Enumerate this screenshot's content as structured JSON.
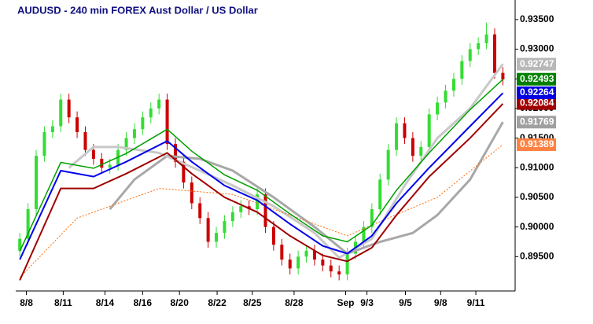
{
  "chart_data": {
    "type": "candlestick",
    "title": "AUDUSD - 240 min  FOREX  Aust Dollar / US Dollar",
    "up_color": "#33dd33",
    "down_color": "#cc0000",
    "open": [
      0.896,
      0.898,
      0.903,
      0.912,
      0.916,
      0.917,
      0.9215,
      0.9185,
      0.916,
      0.913,
      0.9115,
      0.91,
      0.9105,
      0.913,
      0.915,
      0.9165,
      0.9185,
      0.92,
      0.9215,
      0.914,
      0.911,
      0.9075,
      0.904,
      0.9015,
      0.8975,
      0.899,
      0.901,
      0.9025,
      0.9035,
      0.903,
      0.9055,
      0.9,
      0.897,
      0.8945,
      0.893,
      0.895,
      0.896,
      0.8945,
      0.8935,
      0.8925,
      0.892,
      0.8955,
      0.8975,
      0.9,
      0.903,
      0.908,
      0.913,
      0.9175,
      0.915,
      0.912,
      0.9135,
      0.919,
      0.921,
      0.923,
      0.925,
      0.928,
      0.93,
      0.931,
      0.9325,
      0.926
    ],
    "high": [
      0.899,
      0.904,
      0.913,
      0.917,
      0.918,
      0.9225,
      0.9225,
      0.9195,
      0.917,
      0.914,
      0.9125,
      0.9115,
      0.914,
      0.916,
      0.9175,
      0.9195,
      0.921,
      0.9225,
      0.9225,
      0.915,
      0.912,
      0.9085,
      0.905,
      0.9025,
      0.9,
      0.902,
      0.9035,
      0.9045,
      0.9045,
      0.9065,
      0.9065,
      0.901,
      0.898,
      0.8955,
      0.896,
      0.897,
      0.897,
      0.8955,
      0.8945,
      0.8935,
      0.8965,
      0.8985,
      0.901,
      0.904,
      0.909,
      0.914,
      0.9185,
      0.9185,
      0.916,
      0.9145,
      0.92,
      0.922,
      0.924,
      0.926,
      0.929,
      0.931,
      0.932,
      0.9345,
      0.9335,
      0.927
    ],
    "low": [
      0.895,
      0.897,
      0.902,
      0.911,
      0.915,
      0.916,
      0.9175,
      0.915,
      0.912,
      0.9105,
      0.909,
      0.909,
      0.9095,
      0.912,
      0.914,
      0.9155,
      0.9175,
      0.919,
      0.913,
      0.91,
      0.9065,
      0.903,
      0.9005,
      0.8965,
      0.8965,
      0.898,
      0.9,
      0.9015,
      0.902,
      0.902,
      0.899,
      0.896,
      0.8935,
      0.892,
      0.892,
      0.894,
      0.8935,
      0.8925,
      0.8915,
      0.891,
      0.891,
      0.8945,
      0.8965,
      0.899,
      0.902,
      0.907,
      0.912,
      0.914,
      0.911,
      0.911,
      0.9125,
      0.918,
      0.92,
      0.922,
      0.924,
      0.927,
      0.929,
      0.93,
      0.925,
      0.9239
    ],
    "close": [
      0.898,
      0.903,
      0.912,
      0.916,
      0.917,
      0.9215,
      0.9185,
      0.916,
      0.913,
      0.9115,
      0.91,
      0.9105,
      0.913,
      0.915,
      0.9165,
      0.9185,
      0.92,
      0.9215,
      0.914,
      0.911,
      0.9075,
      0.904,
      0.9015,
      0.8975,
      0.899,
      0.901,
      0.9025,
      0.9035,
      0.903,
      0.9055,
      0.9,
      0.897,
      0.8945,
      0.893,
      0.895,
      0.896,
      0.8945,
      0.8935,
      0.8925,
      0.892,
      0.8955,
      0.8975,
      0.9,
      0.903,
      0.908,
      0.913,
      0.9175,
      0.915,
      0.912,
      0.9135,
      0.919,
      0.921,
      0.923,
      0.925,
      0.928,
      0.93,
      0.931,
      0.9325,
      0.926,
      0.9249
    ],
    "series": [
      {
        "color": "#a8a8a8",
        "width": 3,
        "x": [
          11,
          14,
          18,
          22,
          26,
          31,
          36,
          40,
          44,
          48,
          51,
          55,
          59
        ],
        "values": [
          0.903,
          0.908,
          0.912,
          0.9115,
          0.9095,
          0.905,
          0.9,
          0.8955,
          0.8975,
          0.899,
          0.902,
          0.908,
          0.9177
        ]
      },
      {
        "color": "#c8c8c8",
        "width": 3,
        "x": [
          6,
          9,
          12,
          17,
          22,
          26,
          31,
          36,
          39,
          43,
          47,
          51,
          55,
          59
        ],
        "values": [
          0.91,
          0.9135,
          0.9135,
          0.9125,
          0.9095,
          0.907,
          0.9035,
          0.899,
          0.8948,
          0.898,
          0.907,
          0.915,
          0.92,
          0.9275
        ]
      },
      {
        "color": "#ff6a00",
        "width": 1,
        "dashed": true,
        "x": [
          0,
          7,
          17,
          26,
          36,
          40,
          45,
          51,
          59
        ],
        "values": [
          0.8915,
          0.9015,
          0.9065,
          0.9055,
          0.9005,
          0.8985,
          0.9015,
          0.905,
          0.9139
        ]
      },
      {
        "color": "#a00000",
        "width": 2,
        "x": [
          0,
          5,
          9,
          13,
          18,
          21,
          25,
          29,
          33,
          37,
          40,
          43,
          46,
          50,
          55,
          59
        ],
        "values": [
          0.891,
          0.9065,
          0.9065,
          0.909,
          0.9125,
          0.909,
          0.905,
          0.9025,
          0.8985,
          0.8952,
          0.8942,
          0.8965,
          0.902,
          0.9085,
          0.915,
          0.9208
        ]
      },
      {
        "color": "#0000ee",
        "width": 2,
        "x": [
          0,
          5,
          9,
          13,
          18,
          21,
          25,
          29,
          33,
          37,
          40,
          43,
          46,
          50,
          55,
          59
        ],
        "values": [
          0.8945,
          0.9095,
          0.9085,
          0.911,
          0.9145,
          0.911,
          0.907,
          0.9045,
          0.9005,
          0.8968,
          0.8955,
          0.8985,
          0.904,
          0.91,
          0.917,
          0.9226
        ]
      },
      {
        "color": "#00a000",
        "width": 1.5,
        "x": [
          0,
          5,
          9,
          13,
          18,
          21,
          25,
          29,
          33,
          37,
          40,
          43,
          46,
          50,
          55,
          59
        ],
        "values": [
          0.8959,
          0.9109,
          0.9099,
          0.9124,
          0.9165,
          0.9128,
          0.9088,
          0.9062,
          0.9022,
          0.8985,
          0.8975,
          0.9003,
          0.9062,
          0.9125,
          0.9198,
          0.9249
        ]
      }
    ],
    "xlim": [
      -0.5,
      60.5
    ],
    "xticks": [
      {
        "value": 0.8,
        "label": "8/8"
      },
      {
        "value": 5.3,
        "label": "8/11"
      },
      {
        "value": 10.4,
        "label": "8/14"
      },
      {
        "value": 15,
        "label": "8/16"
      },
      {
        "value": 19.5,
        "label": "8/20"
      },
      {
        "value": 24.1,
        "label": "8/22"
      },
      {
        "value": 28.4,
        "label": "8/25"
      },
      {
        "value": 33.5,
        "label": "8/28"
      },
      {
        "value": 39.8,
        "label": "Sep"
      },
      {
        "value": 42.4,
        "label": "9/3"
      },
      {
        "value": 47.1,
        "label": "9/5"
      },
      {
        "value": 51.4,
        "label": "9/8"
      },
      {
        "value": 55.7,
        "label": "9/11"
      }
    ],
    "ylim": [
      0.8892,
      0.9383
    ],
    "yticks": [
      {
        "value": 0.935,
        "label": "0.93500"
      },
      {
        "value": 0.93,
        "label": "0.93000"
      },
      {
        "value": 0.925,
        "label": "0.92500"
      },
      {
        "value": 0.92,
        "label": "0.92000"
      },
      {
        "value": 0.915,
        "label": "0.91500"
      },
      {
        "value": 0.91,
        "label": "0.91000"
      },
      {
        "value": 0.905,
        "label": "0.90500"
      },
      {
        "value": 0.9,
        "label": "0.90000"
      },
      {
        "value": 0.895,
        "label": "0.89500"
      }
    ],
    "annotations": [
      {
        "value": 0.91389,
        "label": "0.91389",
        "color": "#ff8040"
      },
      {
        "value": 0.91769,
        "label": "0.91769",
        "color": "#a0a0a0"
      },
      {
        "value": 0.92747,
        "label": "0.92747",
        "color": "#b8b8b8"
      },
      {
        "value": 0.92084,
        "label": "0.92084",
        "color": "#a00000"
      },
      {
        "value": 0.92264,
        "label": "0.92264",
        "color": "#0000e0"
      },
      {
        "value": 0.92493,
        "label": "0.92493",
        "color": "#008000"
      }
    ]
  }
}
